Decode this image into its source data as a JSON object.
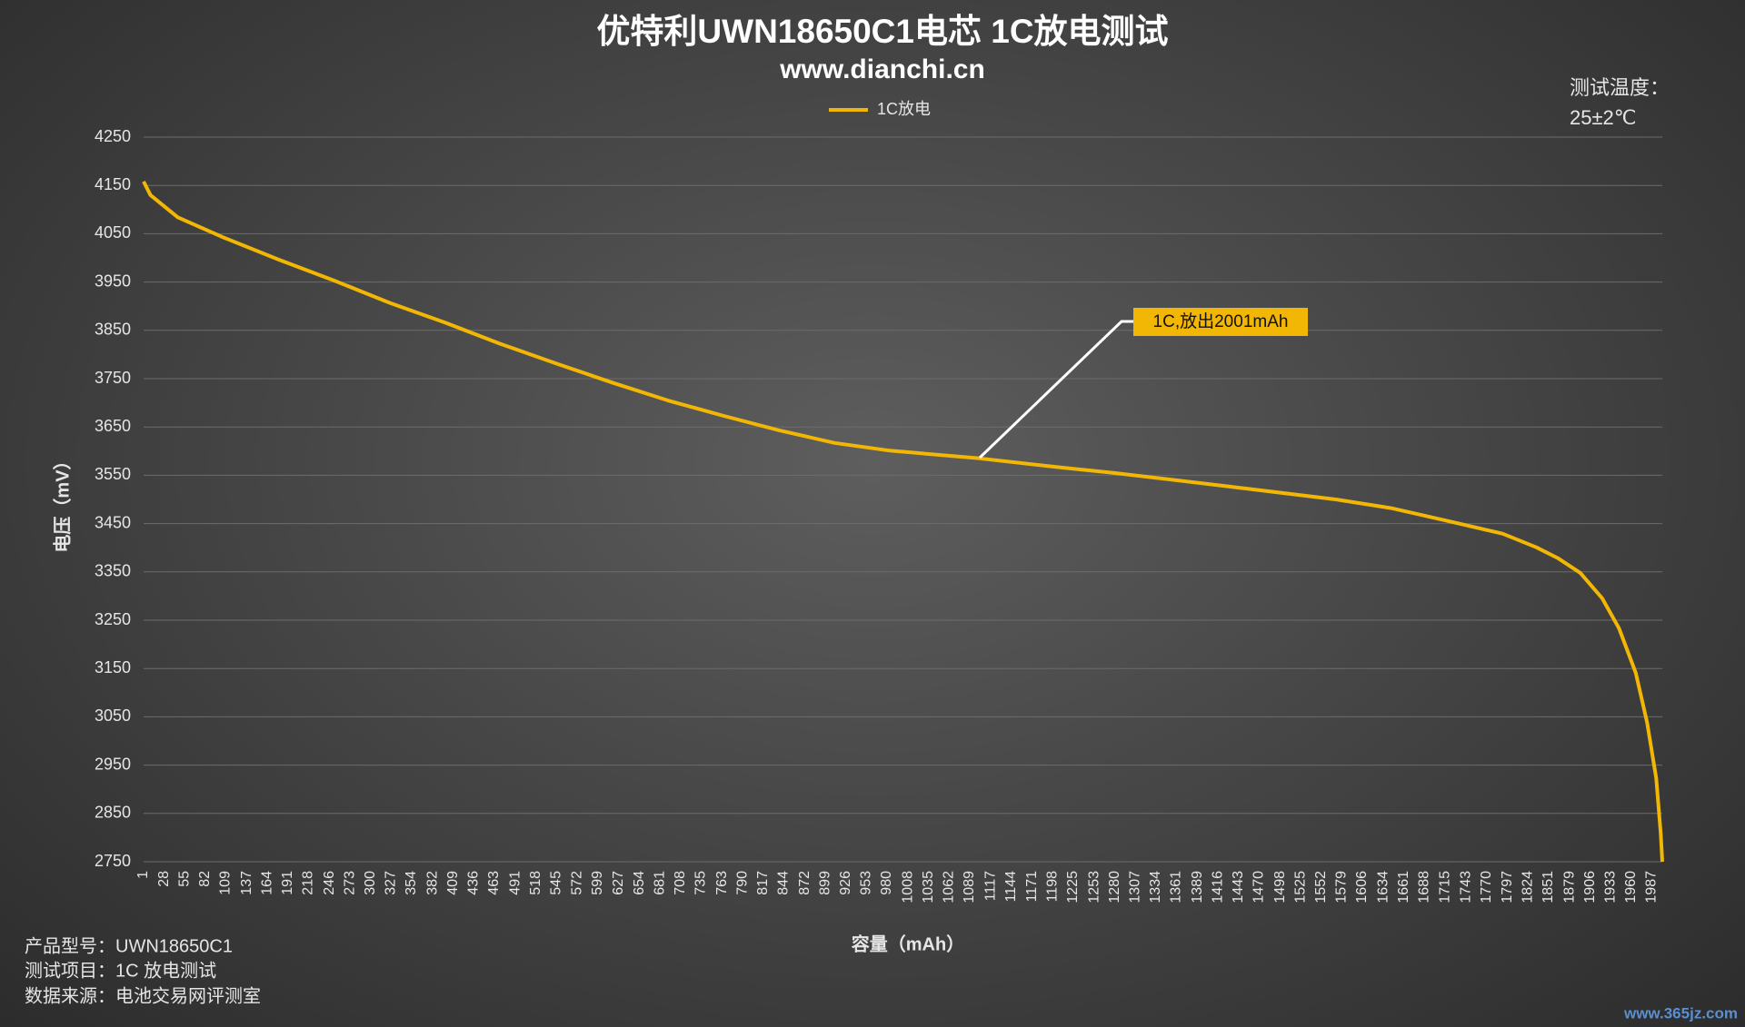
{
  "chart_data": {
    "type": "line",
    "title": "优特利UWN18650C1电芯 1C放电测试",
    "subtitle": "www.dianchi.cn",
    "temperature_note": [
      "测试温度：",
      "25±2℃"
    ],
    "y_label": "电压（mV）",
    "x_label": "容量（mAh）",
    "notes": [
      "产品型号：UWN18650C1",
      "测试项目：1C 放电测试",
      "数据来源：电池交易网评测室"
    ],
    "watermark": "www.365jz.com",
    "annotation": "1C,放出2001mAh",
    "legend": "top",
    "grid": true,
    "xlim": [
      1,
      2001
    ],
    "ylim": [
      2750,
      4250
    ],
    "yticks": [
      2750,
      2850,
      2950,
      3050,
      3150,
      3250,
      3350,
      3450,
      3550,
      3650,
      3750,
      3850,
      3950,
      4050,
      4150,
      4250
    ],
    "xticks": [
      1,
      28,
      55,
      82,
      109,
      137,
      164,
      191,
      218,
      246,
      273,
      300,
      327,
      354,
      382,
      409,
      436,
      463,
      491,
      518,
      545,
      572,
      599,
      627,
      654,
      681,
      708,
      735,
      763,
      790,
      817,
      844,
      872,
      899,
      926,
      953,
      980,
      1008,
      1035,
      1062,
      1089,
      1117,
      1144,
      1171,
      1198,
      1225,
      1253,
      1280,
      1307,
      1334,
      1361,
      1389,
      1416,
      1443,
      1470,
      1498,
      1525,
      1552,
      1579,
      1606,
      1634,
      1661,
      1688,
      1715,
      1743,
      1770,
      1797,
      1824,
      1851,
      1879,
      1906,
      1933,
      1960,
      1987
    ],
    "x": [
      1,
      10,
      46,
      105,
      178,
      252,
      325,
      398,
      471,
      545,
      618,
      691,
      765,
      838,
      911,
      984,
      1102,
      1204,
      1278,
      1424,
      1571,
      1644,
      1717,
      1791,
      1835,
      1864,
      1893,
      1922,
      1944,
      1966,
      1981,
      1993,
      1999,
      2001
    ],
    "series": [
      {
        "name": "1C放电",
        "color": "#f2b705",
        "values": [
          4158,
          4130,
          4084,
          4043,
          3997,
          3953,
          3907,
          3866,
          3822,
          3781,
          3742,
          3705,
          3673,
          3643,
          3617,
          3601,
          3585,
          3567,
          3555,
          3528,
          3500,
          3482,
          3456,
          3429,
          3401,
          3378,
          3348,
          3295,
          3233,
          3141,
          3038,
          2923,
          2808,
          2750
        ]
      }
    ]
  }
}
